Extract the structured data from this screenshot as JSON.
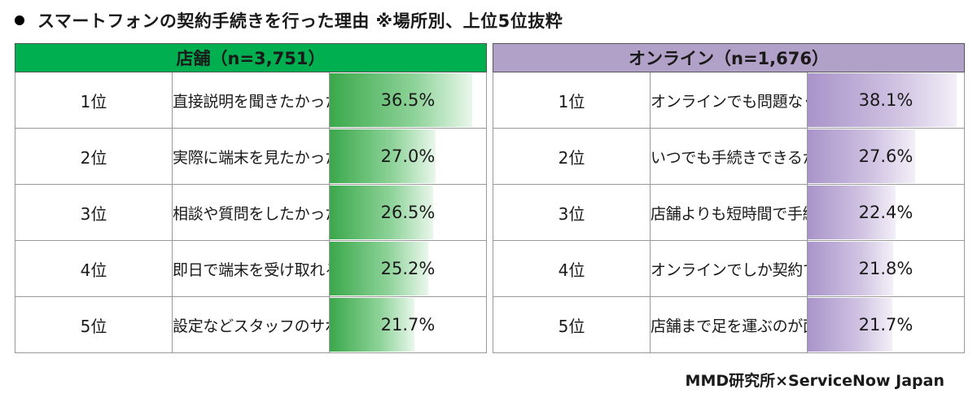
{
  "title": "スマートフォンの契約手続きを行った理由 ※場所別、上位5位抜粋",
  "credit": "MMD研究所×ServiceNow Japan",
  "colors": {
    "store_header": "#00b050",
    "online_header": "#b1a0c7",
    "store_bar": "#3aa84a",
    "online_bar": "#a994c9"
  },
  "chart_data": [
    {
      "type": "table",
      "header": "店舗（n=3,751）",
      "rows": [
        {
          "rank": "1位",
          "reason": "直接説明を聞きたかったから",
          "value": 36.5,
          "label": "36.5%"
        },
        {
          "rank": "2位",
          "reason": "実際に端末を見たかったから",
          "value": 27.0,
          "label": "27.0%"
        },
        {
          "rank": "3位",
          "reason": "相談や質問をしたかったら",
          "value": 26.5,
          "label": "26.5%"
        },
        {
          "rank": "4位",
          "reason": "即日で端末を受け取れるから",
          "value": 25.2,
          "label": "25.2%"
        },
        {
          "rank": "5位",
          "reason": "設定などスタッフのサポートを受けたかったから",
          "value": 21.7,
          "label": "21.7%"
        }
      ]
    },
    {
      "type": "table",
      "header": "オンライン（n=1,676）",
      "rows": [
        {
          "rank": "1位",
          "reason": "オンラインでも問題なく手続きできるから",
          "value": 38.1,
          "label": "38.1%"
        },
        {
          "rank": "2位",
          "reason": "いつでも手続きできるから",
          "value": 27.6,
          "label": "27.6%"
        },
        {
          "rank": "3位",
          "reason": "店舗よりも短時間で手続きできるから",
          "value": 22.4,
          "label": "22.4%"
        },
        {
          "rank": "4位",
          "reason": "オンラインでしか契約できない内容だったから",
          "value": 21.8,
          "label": "21.8%"
        },
        {
          "rank": "5位",
          "reason": "店舗まで足を運ぶのが面倒だから",
          "value": 21.7,
          "label": "21.7%"
        }
      ]
    }
  ]
}
